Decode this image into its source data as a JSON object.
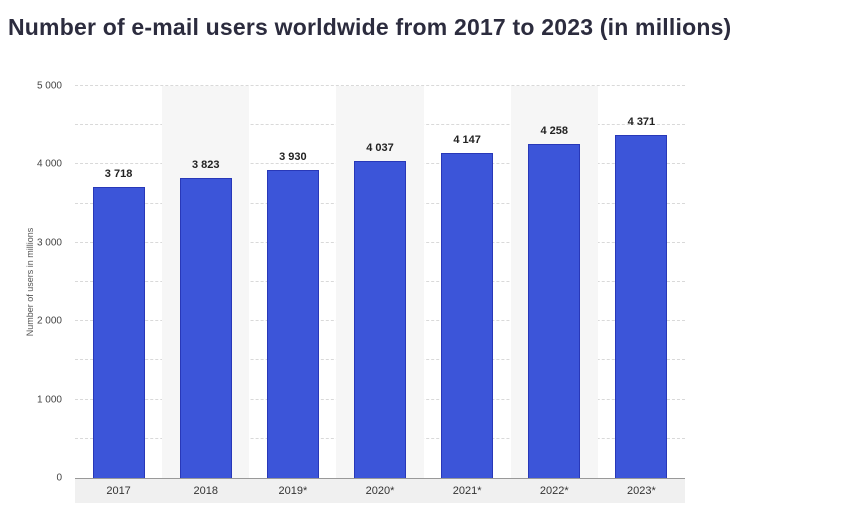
{
  "chart_data": {
    "type": "bar",
    "title": "Number of e-mail users worldwide from 2017 to 2023 (in millions)",
    "categories": [
      "2017",
      "2018",
      "2019*",
      "2020*",
      "2021*",
      "2022*",
      "2023*"
    ],
    "values": [
      3718,
      3823,
      3930,
      4037,
      4147,
      4258,
      4371
    ],
    "value_labels": [
      "3 718",
      "3 823",
      "3 930",
      "4 037",
      "4 147",
      "4 258",
      "4 371"
    ],
    "xlabel": "",
    "ylabel": "Number of users in millions",
    "ylim": [
      0,
      5000
    ],
    "yticks": [
      0,
      1000,
      2000,
      3000,
      4000,
      5000
    ],
    "ytick_labels": [
      "0",
      "1 000",
      "2 000",
      "3 000",
      "4 000",
      "5 000"
    ],
    "grid": "dashed horizontal, every 500",
    "legend": "none",
    "bar_color": "#3c55d9",
    "bar_border_color": "#2838b8",
    "band_color": "#f6f6f6",
    "axis_strip_color": "#f0f0f0",
    "title_color": "#2c2c3e"
  }
}
